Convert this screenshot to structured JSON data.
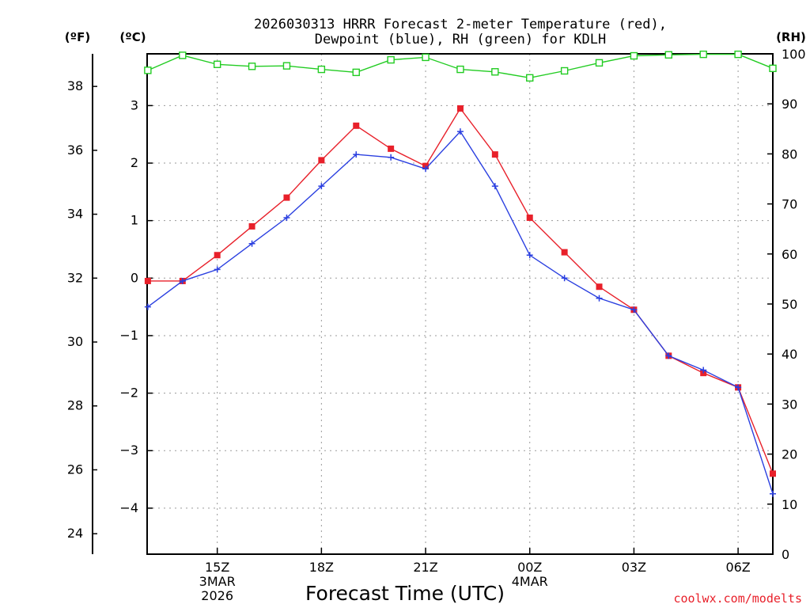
{
  "chart_data": {
    "type": "line",
    "title_line1": "2026030313 HRRR Forecast 2-meter Temperature (red),",
    "title_line2": "Dewpoint (blue), RH (green) for KDLH",
    "xlabel": "Forecast Time (UTC)",
    "credit": "coolwx.com/modelts",
    "units": {
      "fahrenheit": "(ºF)",
      "celsius": "(ºC)",
      "rh": "(RH)"
    },
    "x": [
      13,
      14,
      15,
      16,
      17,
      18,
      19,
      20,
      21,
      22,
      23,
      24,
      25,
      26,
      27,
      28,
      29,
      30,
      31
    ],
    "x_ticks": [
      {
        "x": 15,
        "lines": [
          "15Z",
          "3MAR",
          "2026"
        ]
      },
      {
        "x": 18,
        "lines": [
          "18Z"
        ]
      },
      {
        "x": 21,
        "lines": [
          "21Z"
        ]
      },
      {
        "x": 24,
        "lines": [
          "00Z",
          "4MAR"
        ]
      },
      {
        "x": 27,
        "lines": [
          "03Z"
        ]
      },
      {
        "x": 30,
        "lines": [
          "06Z"
        ]
      }
    ],
    "xlim": [
      12.98,
      31.0
    ],
    "ylim_c": [
      -4.8,
      3.9
    ],
    "ylim_rh": [
      0,
      100
    ],
    "yticks_c": [
      "3",
      "2",
      "1",
      "0",
      "−1",
      "−2",
      "−3",
      "−4"
    ],
    "yticks_c_values": [
      3,
      2,
      1,
      0,
      -1,
      -2,
      -3,
      -4
    ],
    "yticks_f": [
      "38",
      "36",
      "34",
      "32",
      "30",
      "28",
      "26",
      "24"
    ],
    "yticks_f_values": [
      38,
      36,
      34,
      32,
      30,
      28,
      26,
      24
    ],
    "yticks_rh": [
      "100",
      "90",
      "80",
      "70",
      "60",
      "50",
      "40",
      "30",
      "20",
      "10",
      "0"
    ],
    "yticks_rh_values": [
      100,
      90,
      80,
      70,
      60,
      50,
      40,
      30,
      20,
      10,
      0
    ],
    "series": [
      {
        "name": "Temperature",
        "axis": "c",
        "color": "#e8202a",
        "marker": "filled-square",
        "values": [
          -0.05,
          -0.05,
          0.4,
          0.9,
          1.4,
          2.05,
          2.65,
          2.25,
          1.95,
          2.95,
          2.15,
          1.05,
          0.45,
          -0.15,
          -0.55,
          -1.35,
          -1.65,
          -1.9,
          -3.4
        ]
      },
      {
        "name": "Dewpoint",
        "axis": "c",
        "color": "#2a3fe0",
        "marker": "plus",
        "values": [
          -0.5,
          -0.05,
          0.15,
          0.6,
          1.05,
          1.6,
          2.15,
          2.1,
          1.9,
          2.55,
          1.6,
          0.4,
          0.0,
          -0.35,
          -0.55,
          -1.35,
          -1.6,
          -1.9,
          -3.75
        ]
      },
      {
        "name": "RH",
        "axis": "rh",
        "color": "#22cc22",
        "marker": "open-square",
        "values": [
          96.7,
          99.7,
          97.9,
          97.5,
          97.6,
          96.9,
          96.3,
          98.8,
          99.3,
          96.9,
          96.4,
          95.2,
          96.6,
          98.2,
          99.6,
          99.8,
          99.9,
          99.9,
          97.1
        ]
      }
    ]
  }
}
